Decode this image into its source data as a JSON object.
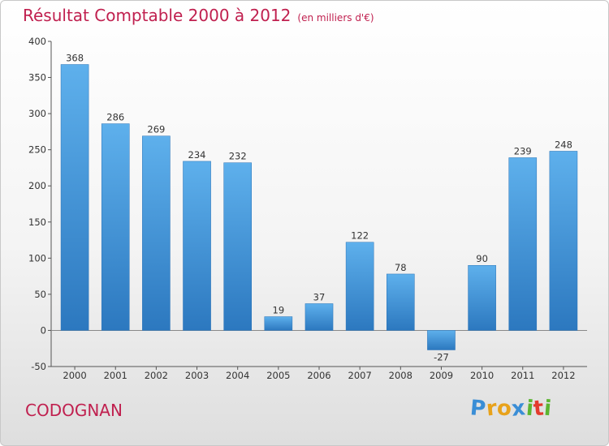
{
  "header": {
    "title": "Résultat Comptable 2000 à 2012",
    "subtitle": "(en milliers d'€)"
  },
  "footer": {
    "town": "CODOGNAN",
    "logo_letters": [
      "P",
      "r",
      "o",
      "x",
      "i",
      "t",
      "i"
    ],
    "logo_colors": [
      "#3a8ed6",
      "#e8a21b",
      "#e8a21b",
      "#3a8ed6",
      "#5cb531",
      "#e33b2d",
      "#5cb531"
    ]
  },
  "chart_data": {
    "type": "bar",
    "title": "Résultat Comptable 2000 à 2012",
    "subtitle": "(en milliers d'€)",
    "categories": [
      "2000",
      "2001",
      "2002",
      "2003",
      "2004",
      "2005",
      "2006",
      "2007",
      "2008",
      "2009",
      "2010",
      "2011",
      "2012"
    ],
    "values": [
      368,
      286,
      269,
      234,
      232,
      19,
      37,
      122,
      78,
      -27,
      90,
      239,
      248
    ],
    "ylim": [
      -50,
      400
    ],
    "yticks": [
      -50,
      0,
      50,
      100,
      150,
      200,
      250,
      300,
      350,
      400
    ],
    "grid": false,
    "bar_color": "#3b8fd6"
  }
}
